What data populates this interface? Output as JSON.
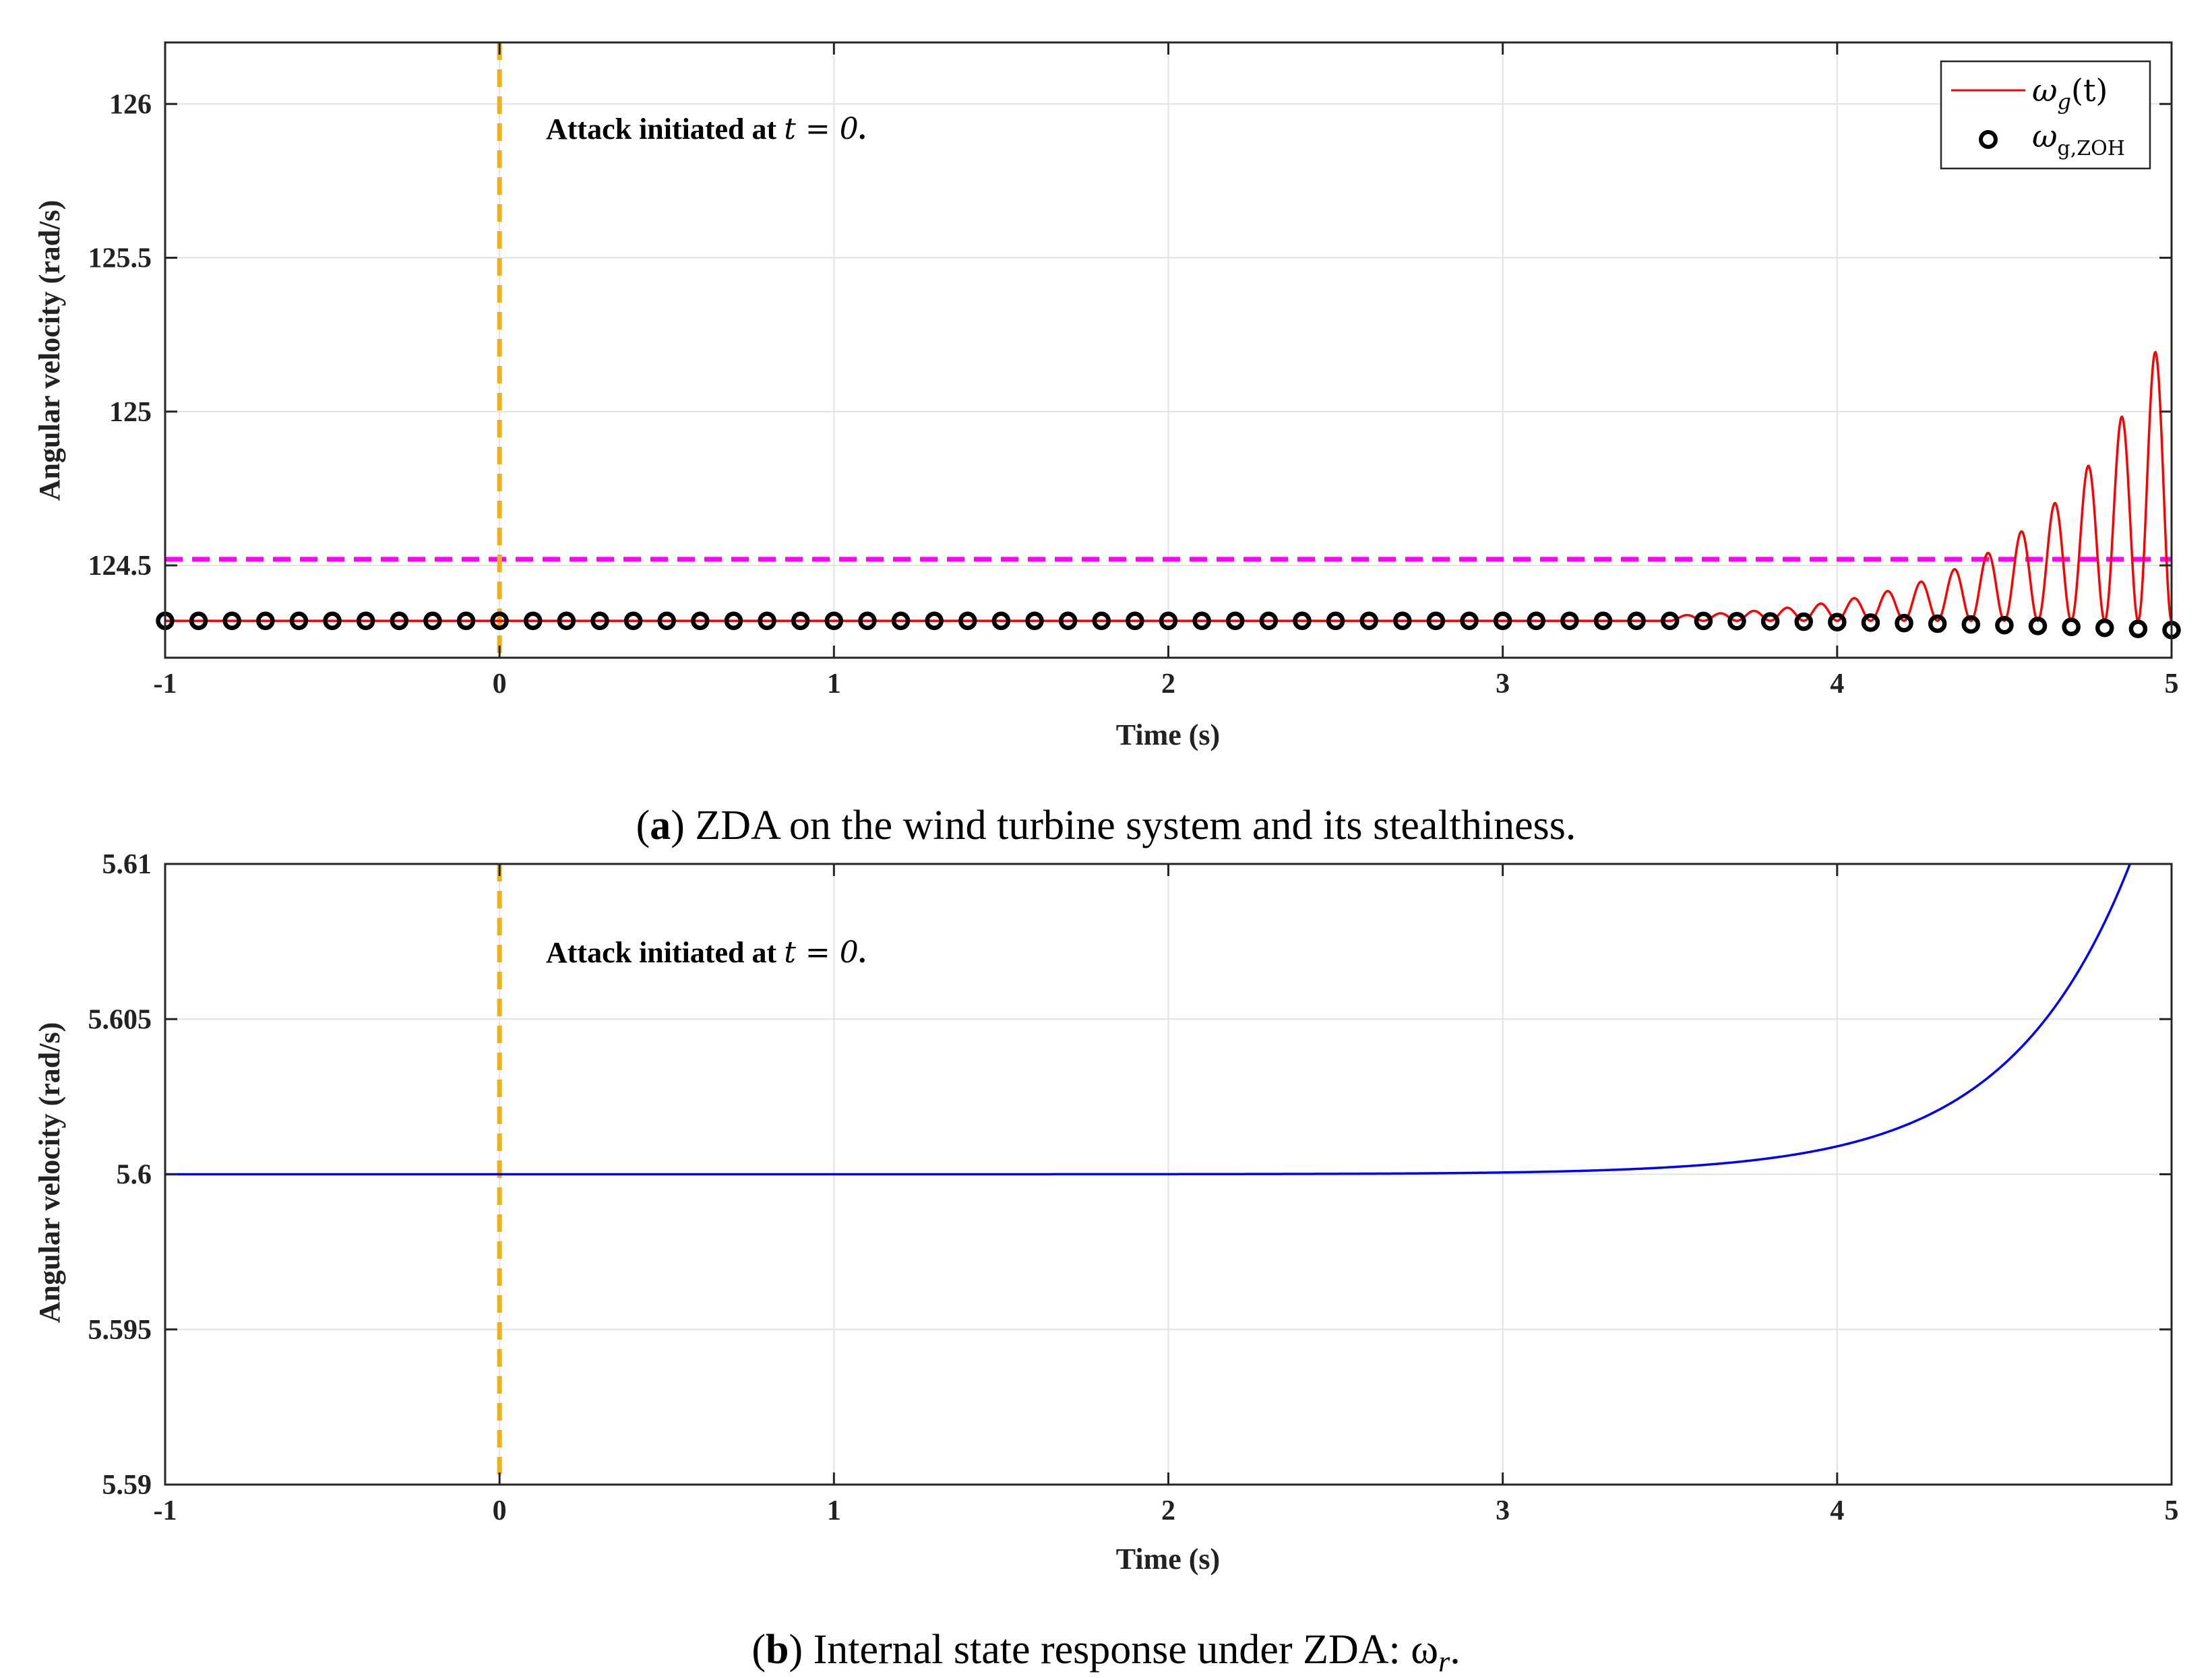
{
  "figure": {
    "caption_a": {
      "letter": "a",
      "text": ") ZDA on the wind turbine system and its stealthiness."
    },
    "caption_b": {
      "letter": "b",
      "text": ") Internal state response under ZDA: ω",
      "sub": "r",
      "end": "."
    }
  },
  "chart_data": [
    {
      "id": "a",
      "type": "line",
      "title": "",
      "xlabel": "Time (s)",
      "ylabel": "Angular velocity (rad/s)",
      "xlim": [
        -1,
        5
      ],
      "ylim": [
        124.2,
        126.2
      ],
      "xticks": [
        -1,
        0,
        1,
        2,
        3,
        4,
        5
      ],
      "xtick_labels": [
        "-1",
        "0",
        "1",
        "2",
        "3",
        "4",
        "5"
      ],
      "yticks": [
        124.5,
        125,
        125.5,
        126
      ],
      "ytick_labels": [
        "124.5",
        "125",
        "125.5",
        "126"
      ],
      "grid": true,
      "legend_position": "top-right",
      "series": [
        {
          "name": "ω_g(t)",
          "legend_main": "ω",
          "legend_sub": "g",
          "legend_rest": "(t)",
          "style": "solid-line",
          "color": "#ff0000",
          "baseline": 124.32,
          "oscillation": {
            "start": 3.5,
            "growth_rate": 2.75,
            "amplitude_at_5": 1.0,
            "period": 0.1,
            "phase": 4.95
          }
        },
        {
          "name": "ω_g,ZOH",
          "legend_main": "ω",
          "legend_sub": "g,ZOH",
          "style": "circle-markers",
          "color": "#000000",
          "sample_period": 0.1,
          "baseline": 124.32,
          "drift_at_5": -0.03
        }
      ],
      "reference_lines": [
        {
          "name": "threshold",
          "orientation": "horizontal",
          "value": 124.52,
          "color": "#ff00ff",
          "style": "dashed"
        },
        {
          "name": "attack-start",
          "orientation": "vertical",
          "value": 0,
          "color": "#edb120",
          "style": "dashed"
        }
      ],
      "annotation": {
        "prefix": "Attack initiated at ",
        "math": "t = 0",
        "suffix": ".",
        "x": 0.15,
        "y": 126.0
      }
    },
    {
      "id": "b",
      "type": "line",
      "title": "",
      "xlabel": "Time (s)",
      "ylabel": "Angular velocity (rad/s)",
      "xlim": [
        -1,
        5
      ],
      "ylim": [
        5.59,
        5.61
      ],
      "xticks": [
        -1,
        0,
        1,
        2,
        3,
        4,
        5
      ],
      "xtick_labels": [
        "-1",
        "0",
        "1",
        "2",
        "3",
        "4",
        "5"
      ],
      "yticks": [
        5.59,
        5.595,
        5.6,
        5.605,
        5.61
      ],
      "ytick_labels": [
        "5.59",
        "5.595",
        "5.6",
        "5.605",
        "5.61"
      ],
      "grid": true,
      "series": [
        {
          "name": "ω_r",
          "style": "solid-line",
          "color": "#0000ff",
          "baseline": 5.6,
          "growth": {
            "start": 3.0,
            "rate": 2.75,
            "value_at_4": 5.6009,
            "value_at_4_84": 5.61
          }
        }
      ],
      "reference_lines": [
        {
          "name": "attack-start",
          "orientation": "vertical",
          "value": 0,
          "color": "#edb120",
          "style": "dashed"
        }
      ],
      "annotation": {
        "prefix": "Attack initiated at ",
        "math": "t = 0",
        "suffix": ".",
        "x": 0.15,
        "y": 5.607
      }
    }
  ]
}
